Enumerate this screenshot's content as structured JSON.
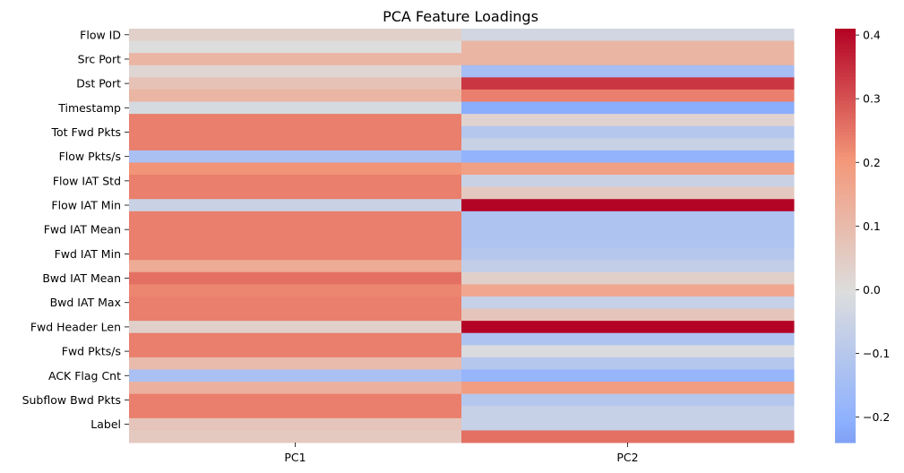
{
  "chart_data": {
    "type": "heatmap",
    "title": "PCA Feature Loadings",
    "xlabel": "",
    "ylabel": "",
    "columns": [
      "PC1",
      "PC2"
    ],
    "row_tick_labels": [
      "Flow ID",
      "Src Port",
      "Dst Port",
      "Timestamp",
      "Tot Fwd Pkts",
      "Flow Pkts/s",
      "Flow IAT Std",
      "Flow IAT Min",
      "Fwd IAT Mean",
      "Fwd IAT Min",
      "Bwd IAT Mean",
      "Bwd IAT Max",
      "Fwd Header Len",
      "Fwd Pkts/s",
      "ACK Flag Cnt",
      "Subflow Bwd Pkts",
      "Label"
    ],
    "values": [
      [
        0.04,
        -0.03
      ],
      [
        0.0,
        0.12
      ],
      [
        0.12,
        0.12
      ],
      [
        0.02,
        -0.14
      ],
      [
        0.08,
        0.34
      ],
      [
        0.12,
        0.24
      ],
      [
        -0.02,
        -0.21
      ],
      [
        0.24,
        0.03
      ],
      [
        0.24,
        -0.1
      ],
      [
        0.24,
        -0.05
      ],
      [
        -0.13,
        -0.19
      ],
      [
        0.21,
        0.18
      ],
      [
        0.24,
        -0.05
      ],
      [
        0.24,
        0.06
      ],
      [
        -0.05,
        0.41
      ],
      [
        0.24,
        -0.12
      ],
      [
        0.24,
        -0.12
      ],
      [
        0.24,
        -0.12
      ],
      [
        0.24,
        -0.1
      ],
      [
        0.15,
        -0.07
      ],
      [
        0.26,
        0.04
      ],
      [
        0.23,
        0.16
      ],
      [
        0.24,
        -0.06
      ],
      [
        0.24,
        0.07
      ],
      [
        0.04,
        0.41
      ],
      [
        0.24,
        -0.12
      ],
      [
        0.24,
        -0.01
      ],
      [
        0.1,
        -0.1
      ],
      [
        -0.13,
        -0.18
      ],
      [
        0.13,
        0.19
      ],
      [
        0.24,
        -0.1
      ],
      [
        0.24,
        -0.06
      ],
      [
        0.07,
        -0.06
      ],
      [
        0.06,
        0.26
      ]
    ],
    "colorbar": {
      "min": -0.24,
      "max": 0.41,
      "ticks": [
        -0.2,
        -0.1,
        0.0,
        0.1,
        0.2,
        0.3,
        0.4
      ],
      "tick_labels": [
        "−0.2",
        "−0.1",
        "0.0",
        "0.1",
        "0.2",
        "0.3",
        "0.4"
      ]
    },
    "colormap": "coolwarm",
    "grid": false
  }
}
